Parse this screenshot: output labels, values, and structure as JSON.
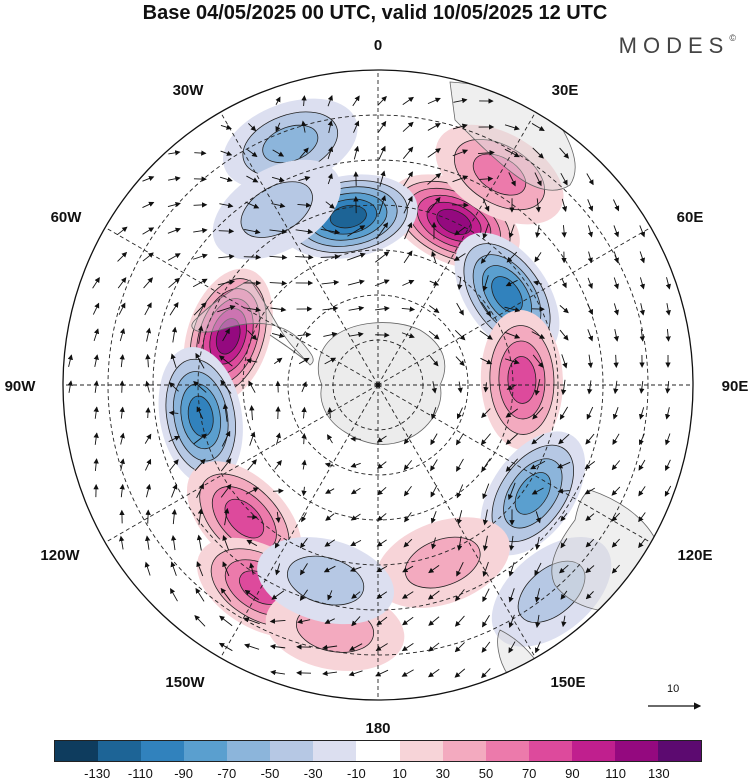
{
  "title": "Base 04/05/2025 00 UTC, valid 10/05/2025 12 UTC",
  "brand": "MODES",
  "brand_mark": "©",
  "longitude_labels": [
    "0",
    "30E",
    "60E",
    "90E",
    "120E",
    "150E",
    "180",
    "150W",
    "120W",
    "90W",
    "60W",
    "30W"
  ],
  "vector_scale_label": "10",
  "colorbar": {
    "ticks": [
      "-130",
      "-110",
      "-90",
      "-70",
      "-50",
      "-30",
      "-10",
      "10",
      "30",
      "50",
      "70",
      "90",
      "110",
      "130"
    ],
    "colors": [
      "#0e3c5e",
      "#1d6496",
      "#3182bd",
      "#5a9fcf",
      "#8cb5db",
      "#b6c8e4",
      "#dcdff0",
      "#ffffff",
      "#f7d4d8",
      "#f3aabf",
      "#ec7aab",
      "#dd4a9c",
      "#c01f8e",
      "#94097f",
      "#5c0a70"
    ]
  },
  "anomaly_centers": [
    {
      "lat": -50,
      "lon": 25,
      "value": 110
    },
    {
      "lat": -52,
      "lon": -10,
      "value": -110
    },
    {
      "lat": -55,
      "lon": -72,
      "value": 110
    },
    {
      "lat": -55,
      "lon": 55,
      "value": -90
    },
    {
      "lat": -58,
      "lon": 88,
      "value": 70
    },
    {
      "lat": -50,
      "lon": -100,
      "value": -90
    },
    {
      "lat": -48,
      "lon": 125,
      "value": -70
    },
    {
      "lat": -48,
      "lon": -135,
      "value": 70
    },
    {
      "lat": -38,
      "lon": -150,
      "value": 70
    },
    {
      "lat": -48,
      "lon": 160,
      "value": 30
    },
    {
      "lat": -35,
      "lon": -170,
      "value": 30
    },
    {
      "lat": -36,
      "lon": 30,
      "value": 50
    },
    {
      "lat": -33,
      "lon": -20,
      "value": -50
    },
    {
      "lat": -45,
      "lon": -30,
      "value": -30
    },
    {
      "lat": -30,
      "lon": 140,
      "value": -30
    },
    {
      "lat": -45,
      "lon": -165,
      "value": -30
    }
  ]
}
